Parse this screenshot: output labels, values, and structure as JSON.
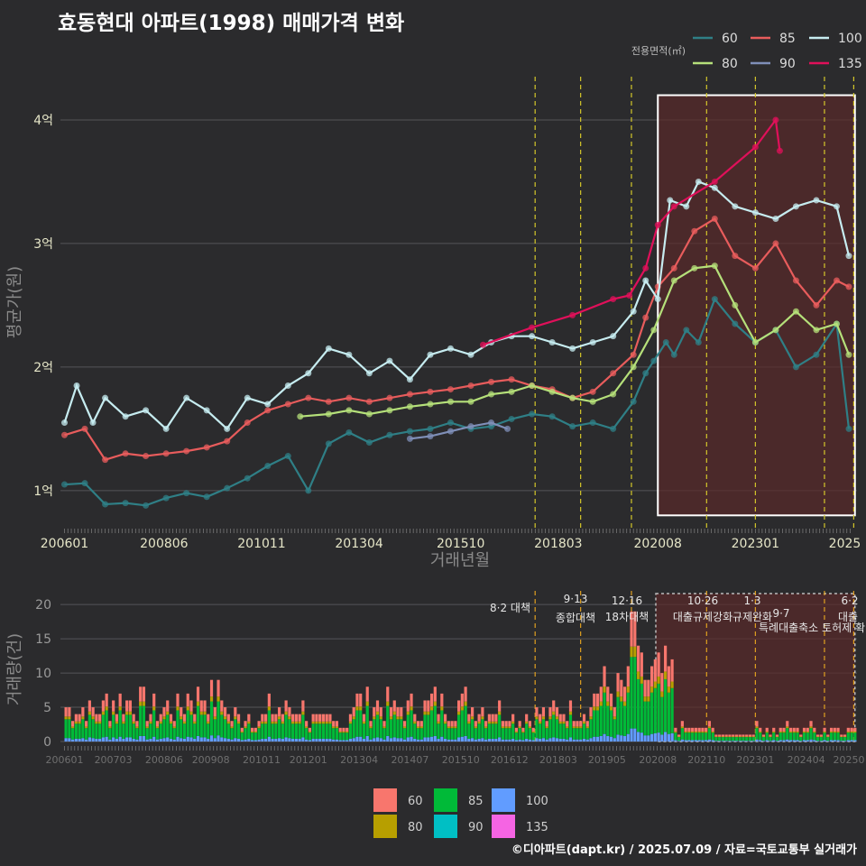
{
  "title": "효동현대 아파트(1998) 매매가격 변화",
  "footer": "©디아파트(dapt.kr) / 2025.07.09 / 자료=국토교통부 실거래가",
  "colors": {
    "bg": "#2b2b2d",
    "grid": "#555558",
    "policy_line": "#d4c72a",
    "box": "#ffffff",
    "shade": "#5a2a2a",
    "s60": "#2f7f86",
    "s80": "#b5e07a",
    "s85": "#e85c5c",
    "s90": "#7f8fb8",
    "s100": "#c6ecf0",
    "s135": "#e0105a",
    "v60": "#f8766d",
    "v80": "#b79f00",
    "v85": "#00ba38",
    "v90": "#00bfc4",
    "v100": "#619cff",
    "v135": "#f564e3"
  },
  "chart_data": [
    {
      "type": "line",
      "title": "효동현대 아파트(1998) 매매가격 변화",
      "xlabel": "거래년월",
      "ylabel": "평균가(원)",
      "legend_title": "전용면적(㎡)",
      "legend_position": "top-right",
      "grid": true,
      "x_ticks": [
        "200601",
        "200806",
        "201011",
        "201304",
        "201510",
        "201803",
        "202008",
        "202301",
        "2025"
      ],
      "y_ticks": [
        "1억",
        "2억",
        "3억",
        "4억"
      ],
      "ylim": [
        0.7,
        4.3
      ],
      "y_unit": "억",
      "policy_dates": [
        "2017.08",
        "2018.09",
        "2019.12",
        "2021.10",
        "2023.01",
        "2024.07",
        "2025.06"
      ],
      "highlight_range": [
        "2020.08",
        "2025.06"
      ],
      "series": [
        {
          "name": "60",
          "points": [
            [
              2006.0,
              1.05
            ],
            [
              2006.5,
              1.06
            ],
            [
              2007.0,
              0.89
            ],
            [
              2007.5,
              0.9
            ],
            [
              2008.0,
              0.88
            ],
            [
              2008.5,
              0.94
            ],
            [
              2009.0,
              0.98
            ],
            [
              2009.5,
              0.95
            ],
            [
              2010.0,
              1.02
            ],
            [
              2010.5,
              1.1
            ],
            [
              2011.0,
              1.2
            ],
            [
              2011.5,
              1.28
            ],
            [
              2012.0,
              1.0
            ],
            [
              2012.5,
              1.38
            ],
            [
              2013.0,
              1.47
            ],
            [
              2013.5,
              1.39
            ],
            [
              2014.0,
              1.45
            ],
            [
              2014.5,
              1.48
            ],
            [
              2015.0,
              1.5
            ],
            [
              2015.5,
              1.55
            ],
            [
              2016.0,
              1.5
            ],
            [
              2016.5,
              1.52
            ],
            [
              2017.0,
              1.58
            ],
            [
              2017.5,
              1.62
            ],
            [
              2018.0,
              1.6
            ],
            [
              2018.5,
              1.52
            ],
            [
              2019.0,
              1.55
            ],
            [
              2019.5,
              1.5
            ],
            [
              2020.0,
              1.72
            ],
            [
              2020.3,
              1.95
            ],
            [
              2020.5,
              2.05
            ],
            [
              2020.8,
              2.2
            ],
            [
              2021.0,
              2.1
            ],
            [
              2021.3,
              2.3
            ],
            [
              2021.6,
              2.2
            ],
            [
              2022.0,
              2.55
            ],
            [
              2022.5,
              2.35
            ],
            [
              2023.0,
              2.2
            ],
            [
              2023.5,
              2.3
            ],
            [
              2024.0,
              2.0
            ],
            [
              2024.5,
              2.1
            ],
            [
              2025.0,
              2.35
            ],
            [
              2025.3,
              1.5
            ]
          ]
        },
        {
          "name": "85",
          "points": [
            [
              2006.0,
              1.45
            ],
            [
              2006.5,
              1.5
            ],
            [
              2007.0,
              1.25
            ],
            [
              2007.5,
              1.3
            ],
            [
              2008.0,
              1.28
            ],
            [
              2008.5,
              1.3
            ],
            [
              2009.0,
              1.32
            ],
            [
              2009.5,
              1.35
            ],
            [
              2010.0,
              1.4
            ],
            [
              2010.5,
              1.55
            ],
            [
              2011.0,
              1.65
            ],
            [
              2011.5,
              1.7
            ],
            [
              2012.0,
              1.75
            ],
            [
              2012.5,
              1.72
            ],
            [
              2013.0,
              1.75
            ],
            [
              2013.5,
              1.72
            ],
            [
              2014.0,
              1.75
            ],
            [
              2014.5,
              1.78
            ],
            [
              2015.0,
              1.8
            ],
            [
              2015.5,
              1.82
            ],
            [
              2016.0,
              1.85
            ],
            [
              2016.5,
              1.88
            ],
            [
              2017.0,
              1.9
            ],
            [
              2017.5,
              1.85
            ],
            [
              2018.0,
              1.82
            ],
            [
              2018.5,
              1.75
            ],
            [
              2019.0,
              1.8
            ],
            [
              2019.5,
              1.95
            ],
            [
              2020.0,
              2.1
            ],
            [
              2020.3,
              2.4
            ],
            [
              2020.6,
              2.65
            ],
            [
              2021.0,
              2.8
            ],
            [
              2021.5,
              3.1
            ],
            [
              2022.0,
              3.2
            ],
            [
              2022.5,
              2.9
            ],
            [
              2023.0,
              2.8
            ],
            [
              2023.5,
              3.0
            ],
            [
              2024.0,
              2.7
            ],
            [
              2024.5,
              2.5
            ],
            [
              2025.0,
              2.7
            ],
            [
              2025.3,
              2.65
            ]
          ]
        },
        {
          "name": "100",
          "points": [
            [
              2006.0,
              1.55
            ],
            [
              2006.3,
              1.85
            ],
            [
              2006.7,
              1.55
            ],
            [
              2007.0,
              1.75
            ],
            [
              2007.5,
              1.6
            ],
            [
              2008.0,
              1.65
            ],
            [
              2008.5,
              1.5
            ],
            [
              2009.0,
              1.75
            ],
            [
              2009.5,
              1.65
            ],
            [
              2010.0,
              1.5
            ],
            [
              2010.5,
              1.75
            ],
            [
              2011.0,
              1.7
            ],
            [
              2011.5,
              1.85
            ],
            [
              2012.0,
              1.95
            ],
            [
              2012.5,
              2.15
            ],
            [
              2013.0,
              2.1
            ],
            [
              2013.5,
              1.95
            ],
            [
              2014.0,
              2.05
            ],
            [
              2014.5,
              1.9
            ],
            [
              2015.0,
              2.1
            ],
            [
              2015.5,
              2.15
            ],
            [
              2016.0,
              2.1
            ],
            [
              2016.5,
              2.2
            ],
            [
              2017.0,
              2.25
            ],
            [
              2017.5,
              2.25
            ],
            [
              2018.0,
              2.2
            ],
            [
              2018.5,
              2.15
            ],
            [
              2019.0,
              2.2
            ],
            [
              2019.5,
              2.25
            ],
            [
              2020.0,
              2.45
            ],
            [
              2020.3,
              2.7
            ],
            [
              2020.6,
              2.55
            ],
            [
              2020.9,
              3.35
            ],
            [
              2021.3,
              3.3
            ],
            [
              2021.6,
              3.5
            ],
            [
              2022.0,
              3.45
            ],
            [
              2022.5,
              3.3
            ],
            [
              2023.0,
              3.25
            ],
            [
              2023.5,
              3.2
            ],
            [
              2024.0,
              3.3
            ],
            [
              2024.5,
              3.35
            ],
            [
              2025.0,
              3.3
            ],
            [
              2025.3,
              2.9
            ]
          ]
        },
        {
          "name": "80",
          "points": [
            [
              2011.8,
              1.6
            ],
            [
              2012.5,
              1.62
            ],
            [
              2013.0,
              1.65
            ],
            [
              2013.5,
              1.62
            ],
            [
              2014.0,
              1.65
            ],
            [
              2014.5,
              1.68
            ],
            [
              2015.0,
              1.7
            ],
            [
              2015.5,
              1.72
            ],
            [
              2016.0,
              1.72
            ],
            [
              2016.5,
              1.78
            ],
            [
              2017.0,
              1.8
            ],
            [
              2017.5,
              1.85
            ],
            [
              2018.0,
              1.8
            ],
            [
              2018.5,
              1.75
            ],
            [
              2019.0,
              1.72
            ],
            [
              2019.5,
              1.78
            ],
            [
              2020.0,
              2.0
            ],
            [
              2020.5,
              2.3
            ],
            [
              2021.0,
              2.7
            ],
            [
              2021.5,
              2.8
            ],
            [
              2022.0,
              2.82
            ],
            [
              2022.5,
              2.5
            ],
            [
              2023.0,
              2.2
            ],
            [
              2023.5,
              2.3
            ],
            [
              2024.0,
              2.45
            ],
            [
              2024.5,
              2.3
            ],
            [
              2025.0,
              2.35
            ],
            [
              2025.3,
              2.1
            ]
          ]
        },
        {
          "name": "90",
          "points": [
            [
              2014.5,
              1.42
            ],
            [
              2015.0,
              1.44
            ],
            [
              2015.5,
              1.48
            ],
            [
              2016.0,
              1.52
            ],
            [
              2016.5,
              1.55
            ],
            [
              2016.9,
              1.5
            ]
          ]
        },
        {
          "name": "135",
          "points": [
            [
              2016.3,
              2.18
            ],
            [
              2017.5,
              2.32
            ],
            [
              2018.5,
              2.42
            ],
            [
              2019.5,
              2.55
            ],
            [
              2019.9,
              2.58
            ],
            [
              2020.3,
              2.8
            ],
            [
              2020.6,
              3.15
            ],
            [
              2021.0,
              3.3
            ],
            [
              2022.0,
              3.5
            ],
            [
              2023.0,
              3.78
            ],
            [
              2023.5,
              4.0
            ],
            [
              2023.6,
              3.75
            ]
          ]
        }
      ]
    },
    {
      "type": "bar",
      "title": "",
      "xlabel": "",
      "ylabel": "거래량(건)",
      "ylim": [
        0,
        22
      ],
      "y_ticks": [
        "0",
        "5",
        "10",
        "15",
        "20"
      ],
      "x_ticks": [
        "200601",
        "200703",
        "200806",
        "200908",
        "201011",
        "201201",
        "201304",
        "201407",
        "201510",
        "201612",
        "201803",
        "201905",
        "202008",
        "202110",
        "202301",
        "202404",
        "20250"
      ],
      "legend_position": "bottom",
      "annotations": [
        {
          "date": "8·2",
          "label": "8·2 대책"
        },
        {
          "date": "9·13",
          "label": "9·13 종합대책"
        },
        {
          "date": "12·16",
          "label": "12·16 18차대책"
        },
        {
          "date": "10·26",
          "label": "10·26 대출규제강화"
        },
        {
          "date": "1·3",
          "label": "1·3 규제완화"
        },
        {
          "date": "9·7",
          "label": "9·7 특례대출축소"
        },
        {
          "date": "6·2",
          "label": "6·2 대출 토허제 확"
        }
      ],
      "series_names": [
        "60",
        "80",
        "85",
        "90",
        "100",
        "135"
      ],
      "total_by_year": [
        [
          2006,
          5
        ],
        [
          2007,
          6
        ],
        [
          2008,
          5
        ],
        [
          2009,
          7
        ],
        [
          2010,
          4
        ],
        [
          2011,
          5
        ],
        [
          2012,
          3
        ],
        [
          2013,
          6
        ],
        [
          2014,
          5
        ],
        [
          2015,
          6
        ],
        [
          2016,
          5
        ],
        [
          2017,
          4
        ],
        [
          2018,
          5
        ],
        [
          2019,
          8
        ],
        [
          2020,
          10
        ],
        [
          2021,
          2
        ],
        [
          2022,
          1
        ],
        [
          2023,
          2
        ],
        [
          2024,
          2
        ],
        [
          2025,
          2
        ]
      ],
      "peak": {
        "period": "2019.12",
        "value": 19
      }
    }
  ],
  "axes_labels": {
    "top_x": "거래년월",
    "top_y": "평균가(원)",
    "bottom_y": "거래량(건)"
  },
  "legend_top": {
    "title": "전용면적(㎡)",
    "items": [
      "60",
      "85",
      "100",
      "80",
      "90",
      "135"
    ]
  },
  "legend_bottom": {
    "items": [
      "60",
      "85",
      "100",
      "80",
      "90",
      "135"
    ]
  }
}
